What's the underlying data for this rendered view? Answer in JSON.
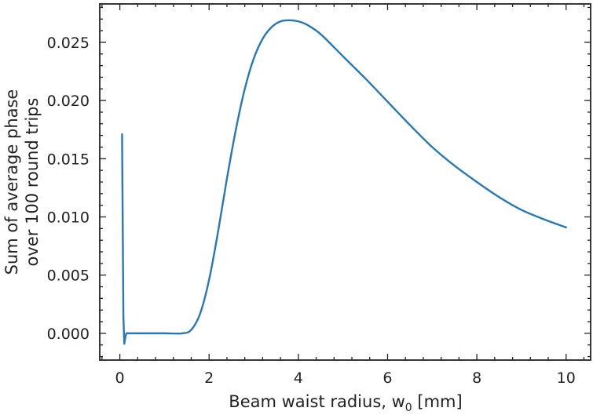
{
  "chart_data": {
    "type": "line",
    "title": "",
    "xlabel": "Beam waist radius, w",
    "xlabel_sub": "0",
    "xlabel_unit": " [mm]",
    "ylabel_line1": "Sum of average phase",
    "ylabel_line2": "over 100 round trips",
    "xlim": [
      -0.45,
      10.55
    ],
    "ylim": [
      -0.0023,
      0.0283
    ],
    "xticks": [
      0,
      2,
      4,
      6,
      8,
      10
    ],
    "xtick_labels": [
      "0",
      "2",
      "4",
      "6",
      "8",
      "10"
    ],
    "yticks": [
      0.0,
      0.005,
      0.01,
      0.015,
      0.02,
      0.025
    ],
    "ytick_labels": [
      "0.000",
      "0.005",
      "0.010",
      "0.015",
      "0.020",
      "0.025"
    ],
    "grid": false,
    "line_color": "#2878b5",
    "series": [
      {
        "x": [
          0.05,
          0.08,
          0.1,
          0.13,
          0.15,
          0.2,
          0.5,
          1.0,
          1.4,
          1.6,
          1.8,
          2.0,
          2.2,
          2.4,
          2.6,
          2.8,
          3.0,
          3.2,
          3.4,
          3.6,
          3.8,
          4.0,
          4.2,
          4.5,
          5.0,
          5.5,
          6.0,
          6.5,
          7.0,
          7.5,
          8.0,
          8.5,
          9.0,
          9.5,
          10.0
        ],
        "y": [
          0.0171,
          0.0015,
          -0.0009,
          -0.0002,
          0.0,
          0.0,
          0.0,
          0.0,
          0.0,
          0.0003,
          0.0017,
          0.0046,
          0.0087,
          0.0133,
          0.0175,
          0.021,
          0.0236,
          0.0253,
          0.0263,
          0.0268,
          0.0269,
          0.0268,
          0.0265,
          0.0257,
          0.0238,
          0.0219,
          0.0199,
          0.0179,
          0.016,
          0.0144,
          0.013,
          0.0117,
          0.0106,
          0.0098,
          0.0091
        ]
      }
    ]
  }
}
